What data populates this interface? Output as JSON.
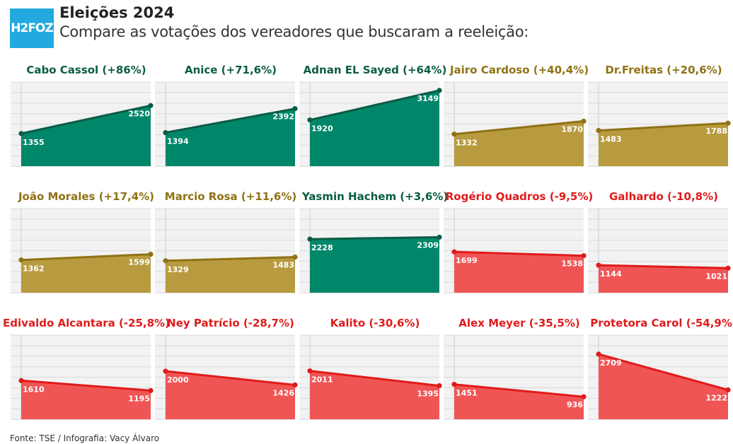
{
  "header": {
    "logo": "H2FOZ",
    "title": "Eleições 2024",
    "subtitle": "Compare as votações dos vereadores que buscaram a reeleição:"
  },
  "footer": {
    "source": "Fonte: TSE / Infografia: Vacy Álvaro"
  },
  "colors": {
    "green_fill": "#00876a",
    "green_line": "#0b5c45",
    "green_title": "#0b5c45",
    "gold_fill": "#b89b3f",
    "gold_line": "#8f7215",
    "gold_title": "#8f7215",
    "red_fill": "#f05555",
    "red_line": "#e01b1b",
    "red_title": "#e01b1b",
    "grid_bg": "#f2f2f2",
    "grid_line": "#d9d9d9"
  },
  "chart_data": [
    {
      "type": "area",
      "title": "Cabo Cassol (+86%)",
      "color": "green",
      "values": [
        1355,
        2520
      ],
      "ylim": [
        0,
        3500
      ]
    },
    {
      "type": "area",
      "title": "Anice (+71,6%)",
      "color": "green",
      "values": [
        1394,
        2392
      ],
      "ylim": [
        0,
        3500
      ]
    },
    {
      "type": "area",
      "title": "Adnan EL Sayed (+64%)",
      "color": "green",
      "values": [
        1920,
        3149
      ],
      "ylim": [
        0,
        3500
      ]
    },
    {
      "type": "area",
      "title": "Jairo Cardoso (+40,4%)",
      "color": "gold",
      "values": [
        1332,
        1870
      ],
      "ylim": [
        0,
        3500
      ]
    },
    {
      "type": "area",
      "title": "Dr.Freitas (+20,6%)",
      "color": "gold",
      "values": [
        1483,
        1788
      ],
      "ylim": [
        0,
        3500
      ]
    },
    {
      "type": "area",
      "title": "João Morales (+17,4%)",
      "color": "gold",
      "values": [
        1362,
        1599
      ],
      "ylim": [
        0,
        3500
      ]
    },
    {
      "type": "area",
      "title": "Marcio Rosa (+11,6%)",
      "color": "gold",
      "values": [
        1329,
        1483
      ],
      "ylim": [
        0,
        3500
      ]
    },
    {
      "type": "area",
      "title": "Yasmin Hachem (+3,6%)",
      "color": "green",
      "values": [
        2228,
        2309
      ],
      "ylim": [
        0,
        3500
      ]
    },
    {
      "type": "area",
      "title": "Rogério Quadros (-9,5%)",
      "color": "red",
      "values": [
        1699,
        1538
      ],
      "ylim": [
        0,
        3500
      ]
    },
    {
      "type": "area",
      "title": "Galhardo (-10,8%)",
      "color": "red",
      "values": [
        1144,
        1021
      ],
      "ylim": [
        0,
        3500
      ]
    },
    {
      "type": "area",
      "title": "Edivaldo Alcantara (-25,8%)",
      "color": "red",
      "values": [
        1610,
        1195
      ],
      "ylim": [
        0,
        3500
      ]
    },
    {
      "type": "area",
      "title": "Ney Patrício (-28,7%)",
      "color": "red",
      "values": [
        2000,
        1426
      ],
      "ylim": [
        0,
        3500
      ]
    },
    {
      "type": "area",
      "title": "Kalito (-30,6%)",
      "color": "red",
      "values": [
        2011,
        1395
      ],
      "ylim": [
        0,
        3500
      ]
    },
    {
      "type": "area",
      "title": "Alex Meyer (-35,5%)",
      "color": "red",
      "values": [
        1451,
        936
      ],
      "ylim": [
        0,
        3500
      ]
    },
    {
      "type": "area",
      "title": "Protetora Carol (-54,9%)",
      "color": "red",
      "values": [
        2709,
        1222
      ],
      "ylim": [
        0,
        3500
      ]
    }
  ]
}
